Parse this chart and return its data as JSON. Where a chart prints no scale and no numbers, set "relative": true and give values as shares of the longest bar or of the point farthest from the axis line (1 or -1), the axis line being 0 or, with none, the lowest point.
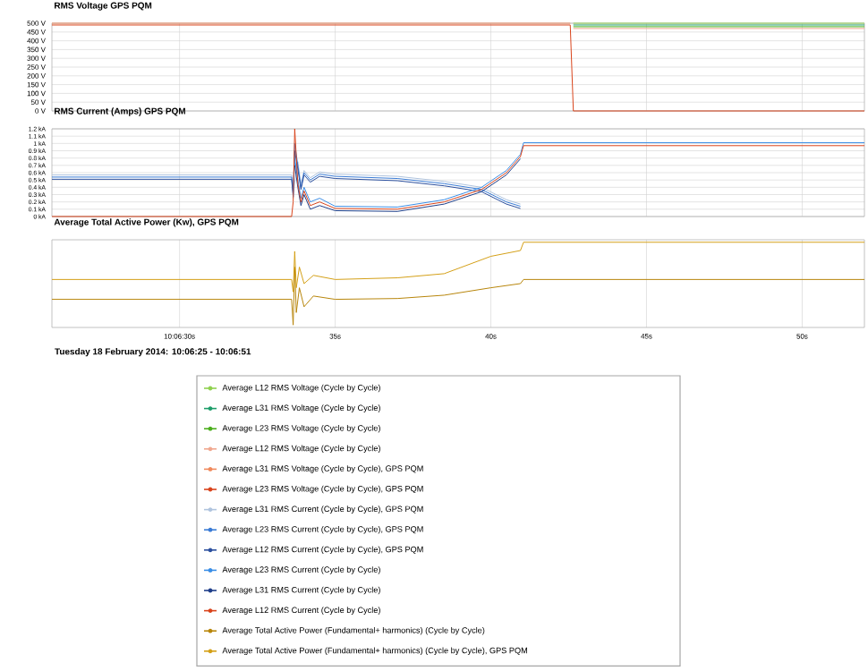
{
  "chart_data": [
    {
      "type": "line",
      "title": "RMS Voltage GPS PQM",
      "xlim": [
        25.9,
        52
      ],
      "xticks": [
        {
          "value": 30,
          "label": null
        },
        {
          "value": 35,
          "label": null
        },
        {
          "value": 40,
          "label": null
        },
        {
          "value": 45,
          "label": null
        },
        {
          "value": 50,
          "label": null
        }
      ],
      "ylim": [
        0,
        500
      ],
      "yticks": [
        {
          "value": 0,
          "label": "0 V"
        },
        {
          "value": 50,
          "label": "50 V"
        },
        {
          "value": 100,
          "label": "100 V"
        },
        {
          "value": 150,
          "label": "150 V"
        },
        {
          "value": 200,
          "label": "200 V"
        },
        {
          "value": 250,
          "label": "250 V"
        },
        {
          "value": 300,
          "label": "300 V"
        },
        {
          "value": 350,
          "label": "350 V"
        },
        {
          "value": 400,
          "label": "400 V"
        },
        {
          "value": 450,
          "label": "450 V"
        },
        {
          "value": 500,
          "label": "500 V"
        }
      ],
      "tick_labels": "y",
      "grid": true,
      "legend": "bottom",
      "x": [
        25.9,
        33.7,
        41.05,
        42.55,
        42.65,
        52
      ],
      "series": [
        {
          "name": "Average L12 RMS Voltage (Cycle by Cycle)",
          "color": "#8fd14f",
          "values": [
            null,
            null,
            null,
            null,
            500,
            500
          ]
        },
        {
          "name": "Average L31 RMS Voltage (Cycle by Cycle)",
          "color": "#1e9e6a",
          "values": [
            null,
            null,
            null,
            null,
            490,
            490
          ]
        },
        {
          "name": "Average L23 RMS Voltage (Cycle by Cycle)",
          "color": "#4caf1e",
          "values": [
            null,
            null,
            null,
            null,
            480,
            480
          ]
        },
        {
          "name": "Average L12 RMS Voltage (Cycle by Cycle)",
          "color": "#f0a890",
          "values": [
            null,
            null,
            null,
            null,
            470,
            470
          ]
        },
        {
          "name": "Average L31 RMS Voltage (Cycle by Cycle), GPS PQM",
          "color": "#f08a5d",
          "values": [
            500,
            500,
            500,
            500,
            null,
            null
          ]
        },
        {
          "name": "Average L23 RMS Voltage (Cycle by Cycle), GPS PQM",
          "color": "#d9441c",
          "values": [
            490,
            490,
            490,
            490,
            0,
            0
          ]
        }
      ]
    },
    {
      "type": "line",
      "title": "RMS Current (Amps) GPS PQM",
      "xlim": [
        25.9,
        52
      ],
      "xticks": [
        {
          "value": 30,
          "label": null
        },
        {
          "value": 35,
          "label": null
        },
        {
          "value": 40,
          "label": null
        },
        {
          "value": 45,
          "label": null
        },
        {
          "value": 50,
          "label": null
        }
      ],
      "ylim": [
        0,
        1.2
      ],
      "yticks": [
        {
          "value": 0,
          "label": "0 kA"
        },
        {
          "value": 0.1,
          "label": "0.1 kA"
        },
        {
          "value": 0.2,
          "label": "0.2 kA"
        },
        {
          "value": 0.3,
          "label": "0.3 kA"
        },
        {
          "value": 0.4,
          "label": "0.4 kA"
        },
        {
          "value": 0.5,
          "label": "0.5 kA"
        },
        {
          "value": 0.6,
          "label": "0.6 kA"
        },
        {
          "value": 0.7,
          "label": "0.7 kA"
        },
        {
          "value": 0.8,
          "label": "0.8 kA"
        },
        {
          "value": 0.9,
          "label": "0.9 kA"
        },
        {
          "value": 1,
          "label": "1 kA"
        },
        {
          "value": 1.1,
          "label": "1.1 kA"
        },
        {
          "value": 1.2,
          "label": "1.2 kA"
        }
      ],
      "tick_labels": "y",
      "grid": true,
      "legend": "bottom",
      "x": [
        25.9,
        31,
        33.6,
        33.65,
        33.7,
        33.8,
        33.9,
        34.0,
        34.2,
        34.5,
        35,
        37,
        38.5,
        39.7,
        40.5,
        40.95,
        41.05,
        45,
        52
      ],
      "series": [
        {
          "name": "Average L31 RMS Current (Cycle by Cycle), GPS PQM",
          "color": "#b0c4de",
          "values": [
            0.57,
            0.57,
            0.57,
            0.33,
            null,
            0.75,
            0.45,
            0.63,
            0.53,
            0.61,
            0.58,
            0.55,
            0.48,
            0.4,
            0.23,
            0.17,
            null,
            null,
            null
          ]
        },
        {
          "name": "Average L23 RMS Current (Cycle by Cycle), GPS PQM",
          "color": "#3a7bd5",
          "values": [
            0.54,
            0.54,
            0.54,
            0.3,
            1.0,
            0.7,
            0.4,
            0.6,
            0.5,
            0.58,
            0.55,
            0.52,
            0.45,
            0.37,
            0.2,
            0.14,
            null,
            null,
            null
          ]
        },
        {
          "name": "Average L12 RMS Current (Cycle by Cycle), GPS PQM",
          "color": "#2b4f9e",
          "values": [
            0.51,
            0.51,
            0.51,
            0.27,
            0.9,
            0.65,
            0.37,
            0.57,
            0.47,
            0.55,
            0.52,
            0.49,
            0.42,
            0.34,
            0.17,
            0.11,
            null,
            null,
            null
          ]
        },
        {
          "name": "Average L23 RMS Current (Cycle by Cycle)",
          "color": "#3a8ee6",
          "values": [
            null,
            null,
            null,
            0.25,
            0.8,
            0.5,
            0.25,
            0.4,
            0.2,
            0.25,
            0.14,
            0.13,
            0.23,
            0.4,
            0.63,
            0.85,
            1.01,
            1.01,
            1.01
          ]
        },
        {
          "name": "Average L31 RMS Current (Cycle by Cycle)",
          "color": "#1f3f8a",
          "values": [
            null,
            null,
            null,
            null,
            0.7,
            0.4,
            0.15,
            0.3,
            0.1,
            0.15,
            0.08,
            0.07,
            0.17,
            0.34,
            0.57,
            0.79,
            null,
            null,
            null
          ]
        },
        {
          "name": "Average L12 RMS Current (Cycle by Cycle)",
          "color": "#d9441c",
          "values": [
            0,
            0,
            0,
            0.2,
            1.2,
            0.45,
            0.2,
            0.35,
            0.15,
            0.2,
            0.11,
            0.1,
            0.2,
            0.37,
            0.6,
            0.82,
            0.97,
            0.97,
            0.97
          ]
        }
      ]
    },
    {
      "type": "line",
      "title": "Average Total Active Power  (Kw), GPS PQM",
      "xlabel": "Tuesday 18 February 2014: 10:06:25 - 10:06:51",
      "xlim": [
        25.9,
        52
      ],
      "xticks": [
        {
          "value": 30,
          "label": "10:06:30s"
        },
        {
          "value": 35,
          "label": "35s"
        },
        {
          "value": 40,
          "label": "40s"
        },
        {
          "value": 45,
          "label": "45s"
        },
        {
          "value": 50,
          "label": "50s"
        }
      ],
      "relative": true,
      "tick_labels": "x",
      "grid": "x",
      "legend": "bottom",
      "x": [
        25.9,
        33.6,
        33.65,
        33.7,
        33.75,
        33.85,
        34.0,
        34.3,
        35,
        37,
        38.5,
        40,
        40.95,
        41.05,
        52
      ],
      "series": [
        {
          "name": "Average Total Active Power  (Fundamental+ harmonics) (Cycle by Cycle)",
          "color": "#b8860b",
          "values": [
            0.31,
            0.31,
            0.0,
            0.7,
            0.15,
            0.45,
            0.22,
            0.35,
            0.31,
            0.32,
            0.36,
            0.45,
            0.5,
            0.55,
            0.55
          ]
        },
        {
          "name": "Average Total Active Power  (Fundamental+ harmonics) (Cycle by Cycle), GPS PQM",
          "color": "#d4a017",
          "values": [
            0.55,
            0.55,
            0.4,
            0.89,
            0.45,
            0.7,
            0.5,
            0.6,
            0.55,
            0.57,
            0.62,
            0.83,
            0.9,
            1.0,
            1.0
          ]
        }
      ]
    }
  ]
}
